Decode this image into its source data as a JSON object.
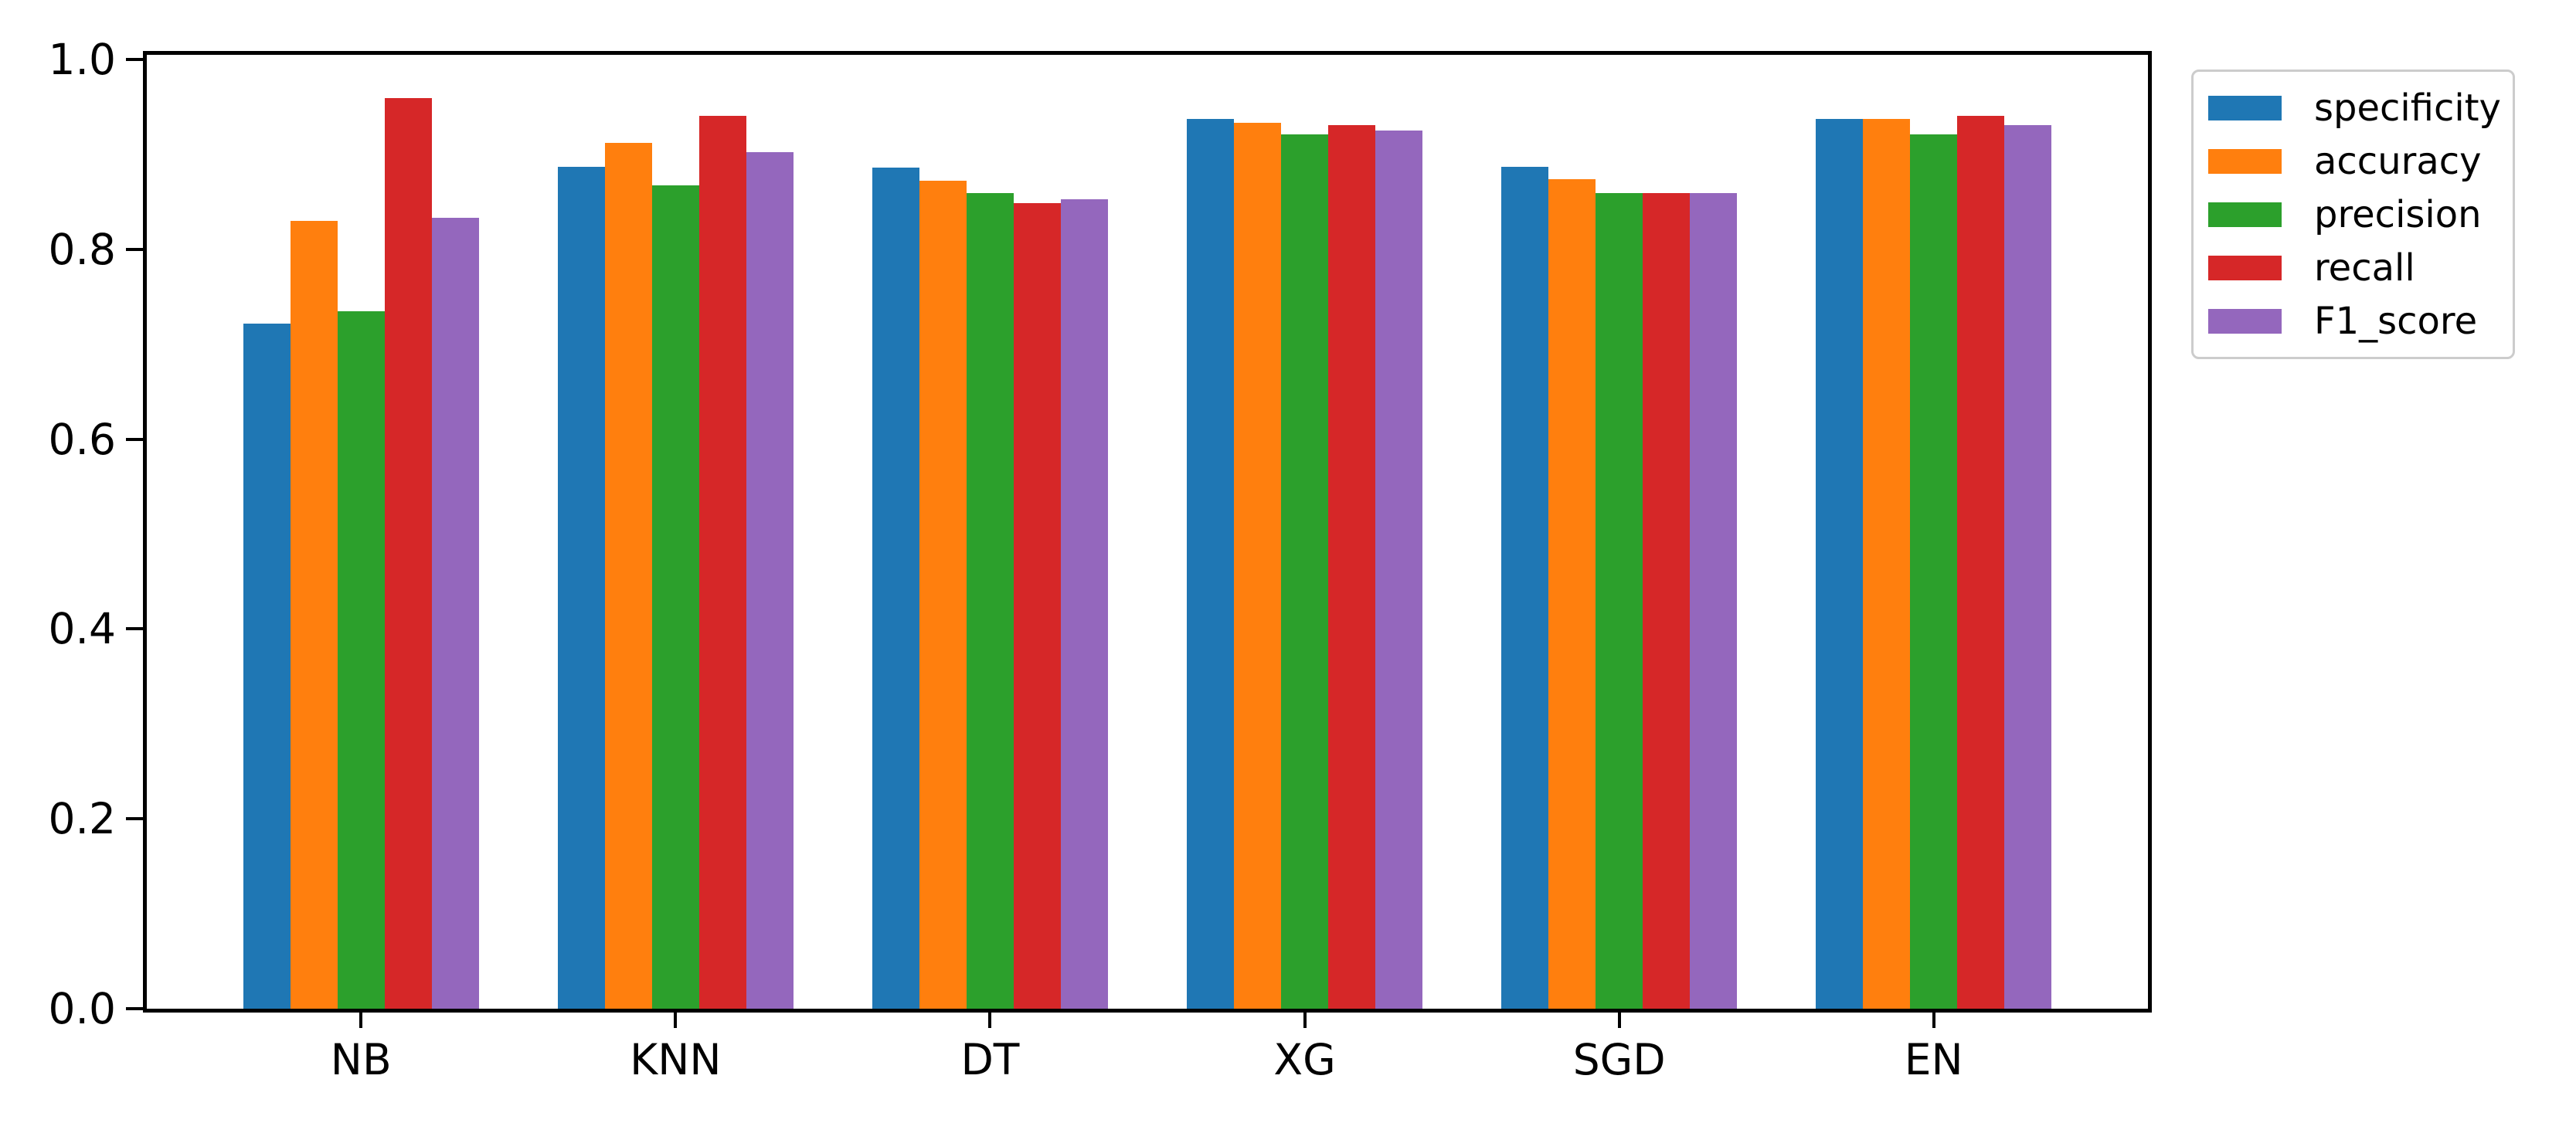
{
  "figure": {
    "background_color": "#ffffff",
    "axis_color": "#000000",
    "legend_border_color": "#cccccc"
  },
  "chart_data": {
    "type": "bar",
    "title": "",
    "xlabel": "",
    "ylabel": "",
    "categories": [
      "NB",
      "KNN",
      "DT",
      "XG",
      "SGD",
      "EN"
    ],
    "series": [
      {
        "name": "specificity",
        "color": "#1f77b4",
        "values": [
          0.722,
          0.887,
          0.886,
          0.937,
          0.887,
          0.937
        ]
      },
      {
        "name": "accuracy",
        "color": "#ff7f0e",
        "values": [
          0.83,
          0.912,
          0.872,
          0.933,
          0.874,
          0.937
        ]
      },
      {
        "name": "precision",
        "color": "#2ca02c",
        "values": [
          0.735,
          0.867,
          0.859,
          0.921,
          0.859,
          0.921
        ]
      },
      {
        "name": "recall",
        "color": "#d62728",
        "values": [
          0.959,
          0.941,
          0.849,
          0.931,
          0.859,
          0.941
        ]
      },
      {
        "name": "F1_score",
        "color": "#9467bd",
        "values": [
          0.833,
          0.902,
          0.853,
          0.925,
          0.859,
          0.931
        ]
      }
    ],
    "ylim": [
      0.0,
      1.0
    ],
    "yticks": [
      "0.0",
      "0.2",
      "0.4",
      "0.6",
      "0.8",
      "1.0"
    ],
    "grid": false,
    "legend": {
      "entries": [
        "specificity",
        "accuracy",
        "precision",
        "recall",
        "F1_score"
      ],
      "position": "outside-upper-right"
    }
  }
}
